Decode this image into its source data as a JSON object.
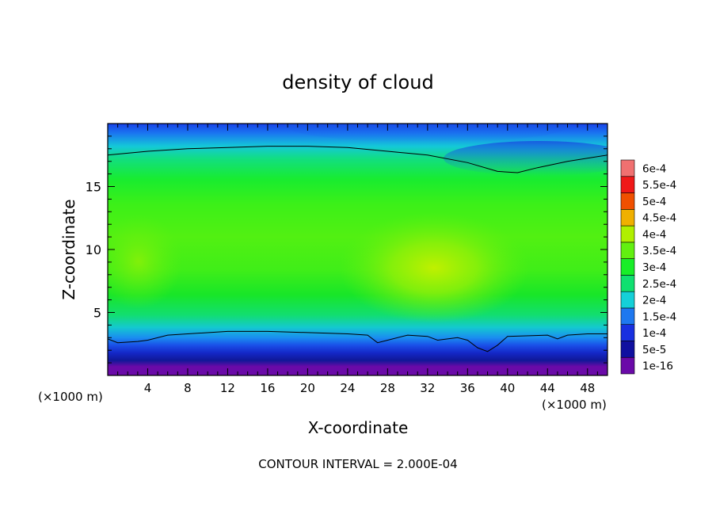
{
  "chart_data": {
    "type": "heatmap",
    "title": "density of cloud",
    "xlabel": "X-coordinate",
    "ylabel": "Z-coordinate",
    "xlim": [
      0,
      50
    ],
    "ylim": [
      0,
      20
    ],
    "x_ticks": [
      4,
      8,
      12,
      16,
      20,
      24,
      28,
      32,
      36,
      40,
      44,
      48
    ],
    "y_ticks": [
      5,
      10,
      15
    ],
    "x_unit_label_left": "(×1000 m)",
    "x_unit_label_right": "(×1000 m)",
    "footer": "CONTOUR INTERVAL = 2.000E-04",
    "colorbar": {
      "levels": [
        "1e-16",
        "5e-5",
        "1e-4",
        "1.5e-4",
        "2e-4",
        "2.5e-4",
        "3e-4",
        "3.5e-4",
        "4e-4",
        "4.5e-4",
        "5e-4",
        "5.5e-4",
        "6e-4"
      ],
      "colors": [
        "#6a0aa8",
        "#1010a0",
        "#1830e0",
        "#1e78f0",
        "#14d0d8",
        "#10e070",
        "#18ee28",
        "#62f010",
        "#b0f000",
        "#f0b000",
        "#f05000",
        "#f01818",
        "#f07070"
      ]
    },
    "contour_lines": [
      {
        "level": "2.000E-04",
        "points": [
          [
            0,
            17.5
          ],
          [
            4,
            17.8
          ],
          [
            8,
            18
          ],
          [
            12,
            18.1
          ],
          [
            16,
            18.2
          ],
          [
            20,
            18.2
          ],
          [
            24,
            18.1
          ],
          [
            28,
            17.8
          ],
          [
            32,
            17.5
          ],
          [
            36,
            16.9
          ],
          [
            39,
            16.2
          ],
          [
            41,
            16.1
          ],
          [
            43,
            16.5
          ],
          [
            46,
            17
          ],
          [
            50,
            17.5
          ]
        ]
      },
      {
        "level": "2.000E-04",
        "points": [
          [
            0,
            2.9
          ],
          [
            1,
            2.6
          ],
          [
            3,
            2.7
          ],
          [
            4,
            2.8
          ],
          [
            6,
            3.2
          ],
          [
            8,
            3.3
          ],
          [
            12,
            3.5
          ],
          [
            16,
            3.5
          ],
          [
            20,
            3.4
          ],
          [
            24,
            3.3
          ],
          [
            26,
            3.2
          ],
          [
            27,
            2.6
          ],
          [
            28,
            2.8
          ],
          [
            30,
            3.2
          ],
          [
            32,
            3.1
          ],
          [
            33,
            2.8
          ],
          [
            35,
            3.0
          ],
          [
            36,
            2.8
          ],
          [
            37,
            2.2
          ],
          [
            38,
            1.9
          ],
          [
            39,
            2.4
          ],
          [
            40,
            3.1
          ],
          [
            44,
            3.2
          ],
          [
            45,
            2.9
          ],
          [
            46,
            3.2
          ],
          [
            48,
            3.3
          ],
          [
            50,
            3.3
          ]
        ]
      }
    ]
  }
}
